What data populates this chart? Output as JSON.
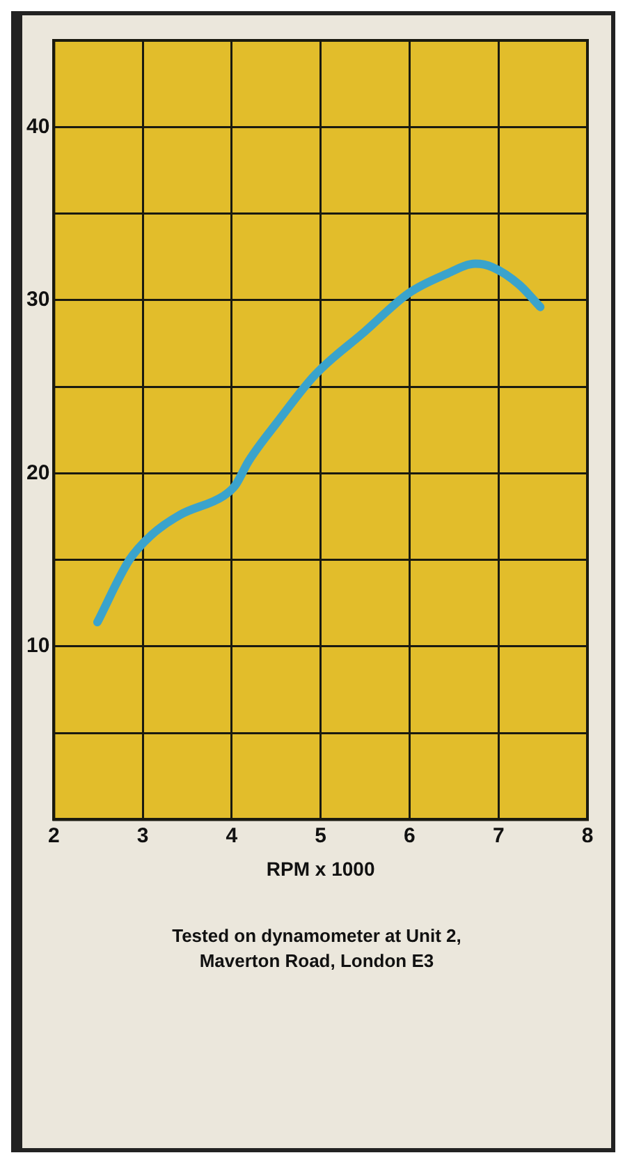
{
  "chart_data": {
    "type": "line",
    "xlabel": "RPM x 1000",
    "x": [
      2.49,
      2.85,
      3.09,
      3.42,
      3.91,
      4.04,
      4.19,
      4.52,
      4.94,
      5.5,
      5.99,
      6.41,
      6.74,
      6.93,
      7.23,
      7.47
    ],
    "series": [
      {
        "color": "#3aa3cc",
        "values": [
          11.4,
          15.0,
          16.4,
          17.6,
          18.7,
          19.3,
          20.7,
          23.0,
          25.7,
          28.2,
          30.4,
          31.5,
          32.1,
          31.9,
          30.9,
          29.6
        ]
      }
    ],
    "xlim": [
      2,
      8
    ],
    "xticks": [
      2,
      3,
      4,
      5,
      6,
      7,
      8
    ],
    "ylim": [
      0,
      45
    ],
    "yticks": [
      {
        "value": 0,
        "label": null
      },
      {
        "value": 5,
        "label": null
      },
      10,
      {
        "value": 15,
        "label": null
      },
      20,
      {
        "value": 25,
        "label": null
      },
      30,
      {
        "value": 35,
        "label": null
      },
      40,
      {
        "value": 45,
        "label": null
      }
    ],
    "grid": true,
    "legend": false,
    "marker": "none",
    "line_style": "solid",
    "annotations": [
      "Tested on dynamometer at Unit 2, Maverton Road, London E3"
    ]
  }
}
